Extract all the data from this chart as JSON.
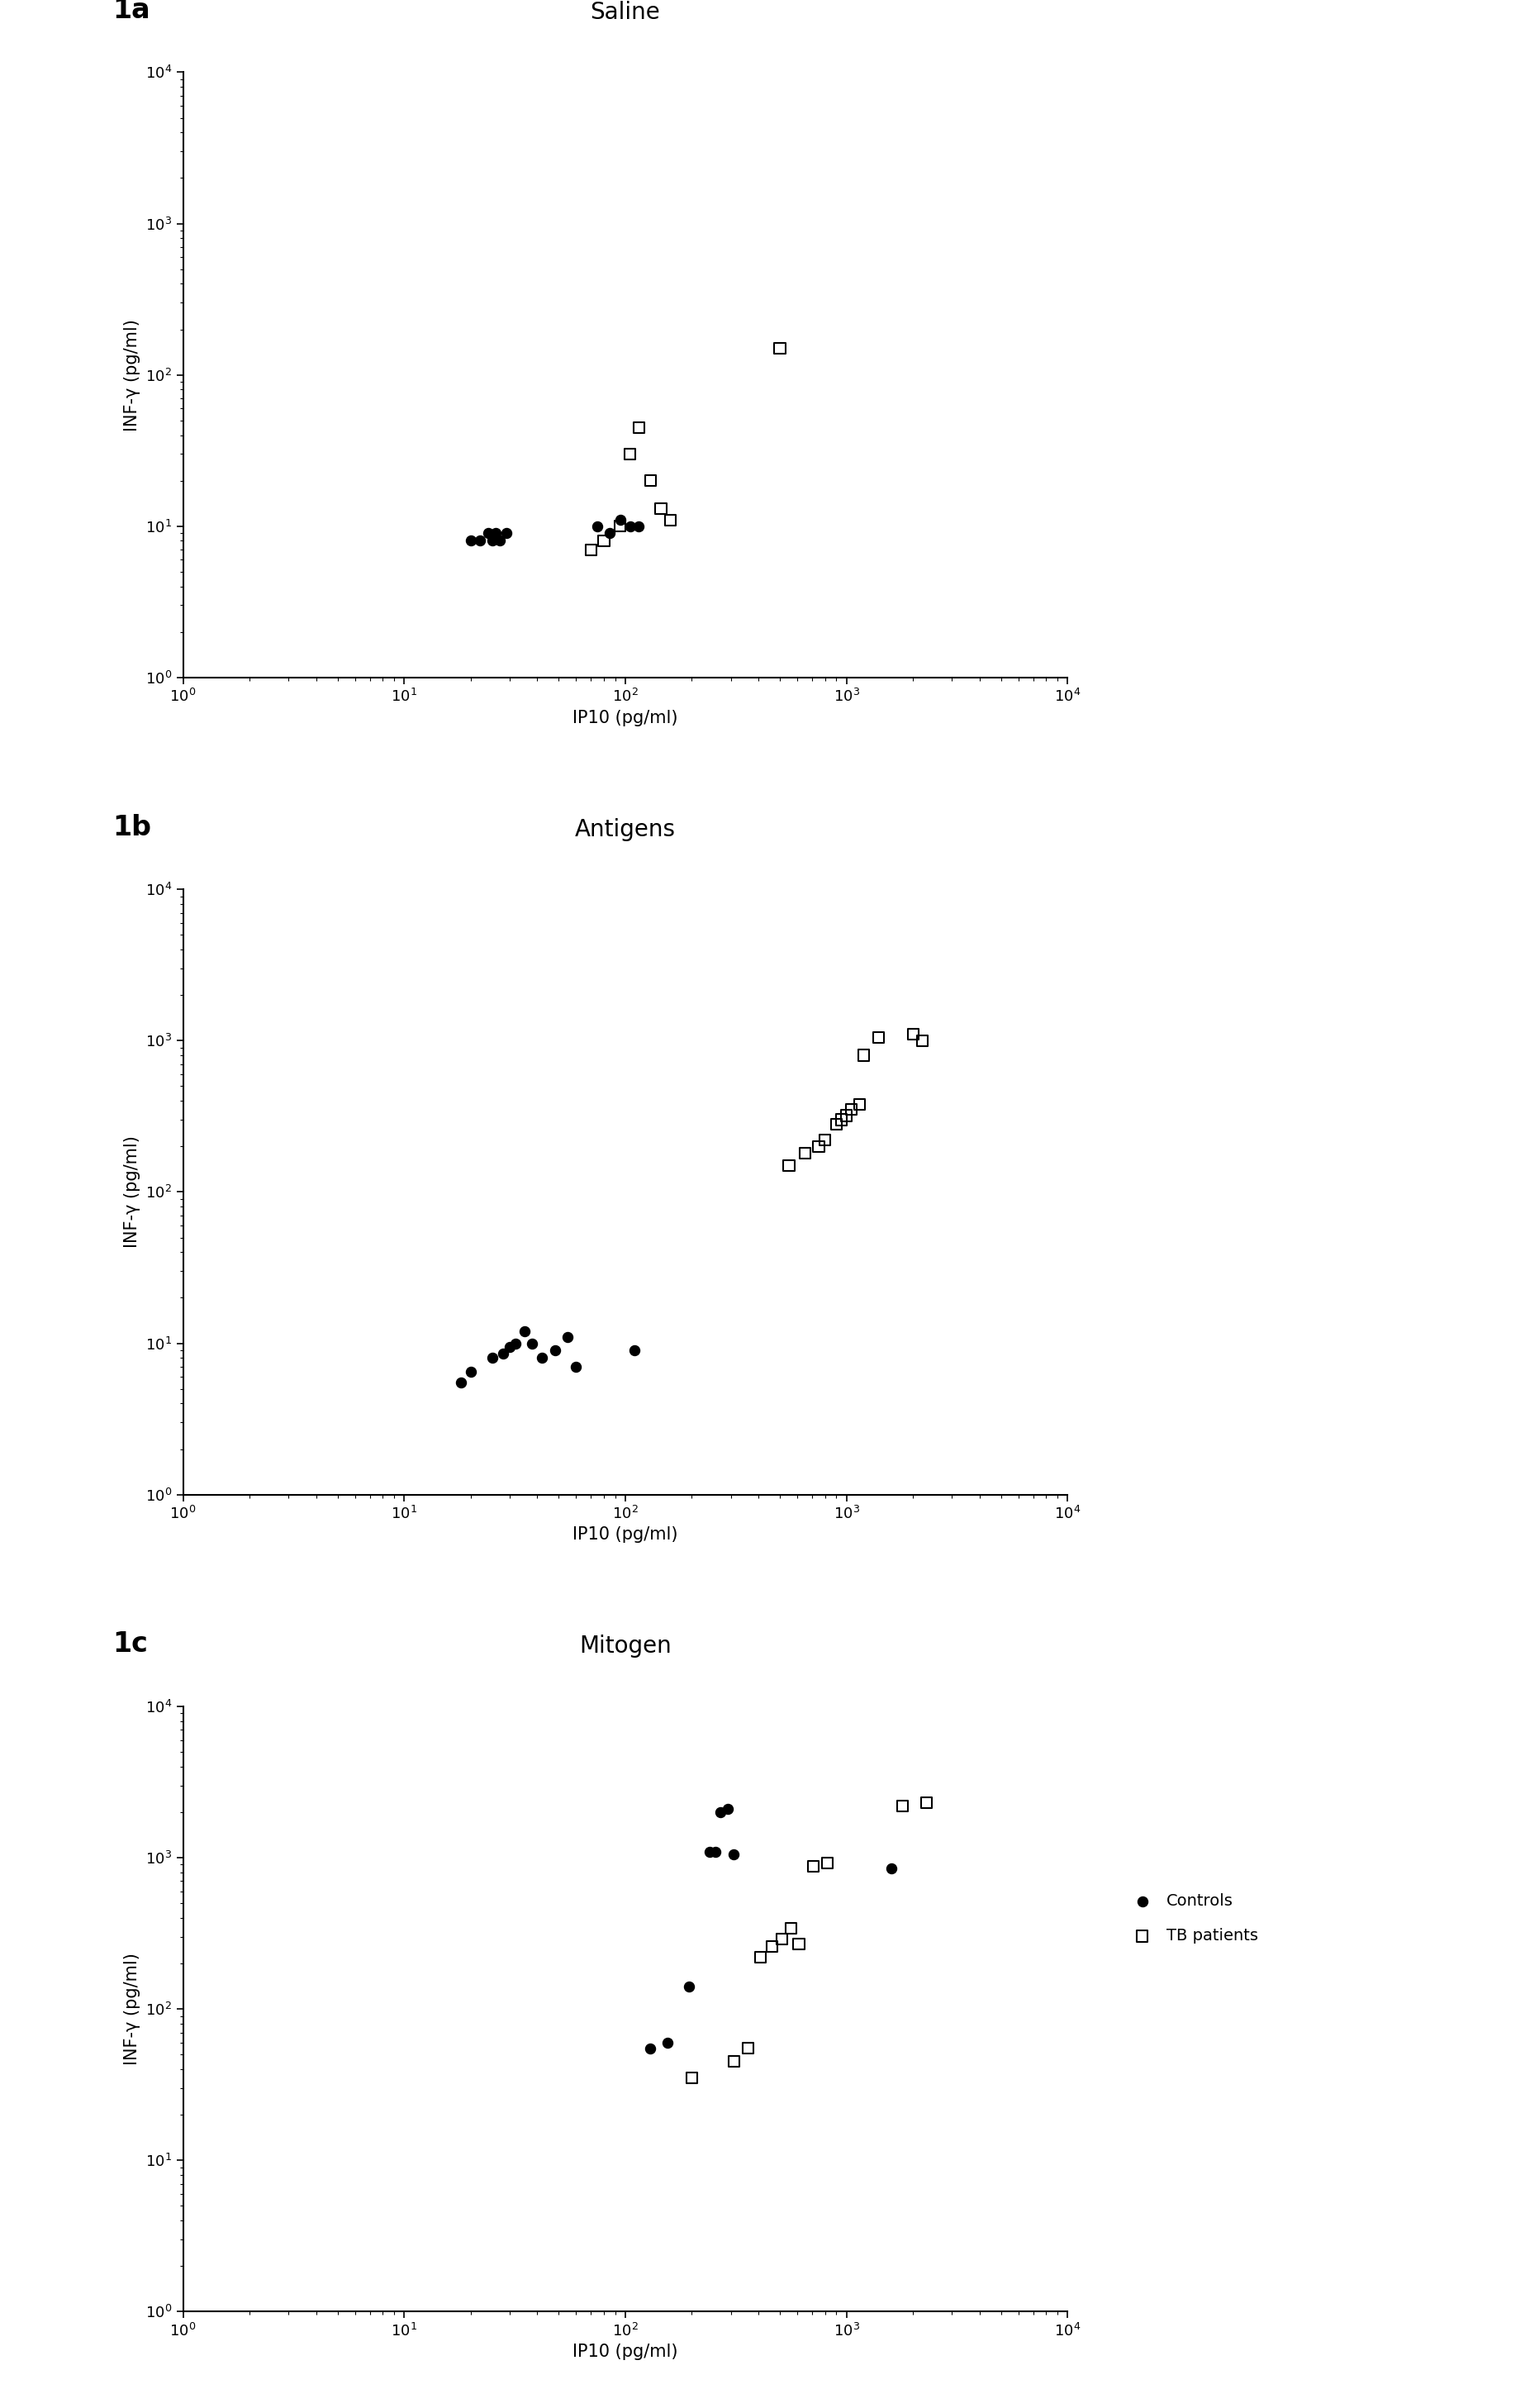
{
  "panels": [
    {
      "label": "1a",
      "title": "Saline",
      "controls_x": [
        20,
        22,
        24,
        25,
        26,
        27,
        29,
        75,
        85,
        95,
        105,
        115
      ],
      "controls_y": [
        8,
        8,
        9,
        8,
        9,
        8,
        9,
        10,
        9,
        11,
        10,
        10
      ],
      "tb_x": [
        70,
        80,
        95,
        105,
        115,
        130,
        145,
        160,
        500
      ],
      "tb_y": [
        7,
        8,
        10,
        30,
        45,
        20,
        13,
        11,
        150
      ]
    },
    {
      "label": "1b",
      "title": "Antigens",
      "controls_x": [
        18,
        20,
        25,
        28,
        30,
        32,
        35,
        38,
        42,
        48,
        55,
        60,
        110
      ],
      "controls_y": [
        5.5,
        6.5,
        8,
        8.5,
        9.5,
        10,
        12,
        10,
        8,
        9,
        11,
        7,
        9
      ],
      "tb_x": [
        550,
        650,
        750,
        800,
        900,
        950,
        1000,
        1050,
        1150,
        1200,
        1400,
        2000,
        2200
      ],
      "tb_y": [
        150,
        180,
        200,
        220,
        280,
        300,
        320,
        350,
        380,
        800,
        1050,
        1100,
        1000
      ]
    },
    {
      "label": "1c",
      "title": "Mitogen",
      "controls_x": [
        130,
        155,
        195,
        240,
        255,
        270,
        290,
        310,
        1600
      ],
      "controls_y": [
        55,
        60,
        140,
        1100,
        1100,
        2000,
        2100,
        1050,
        850
      ],
      "tb_x": [
        200,
        310,
        360,
        410,
        460,
        510,
        560,
        610,
        710,
        820,
        1800,
        2300
      ],
      "tb_y": [
        35,
        45,
        55,
        220,
        260,
        290,
        340,
        270,
        880,
        920,
        2200,
        2300
      ]
    }
  ],
  "xlabel": "IP10 (pg/ml)",
  "ylabel": "INF-γ (pg/ml)",
  "xlim": [
    1,
    10000
  ],
  "ylim": [
    1,
    10000
  ],
  "legend_controls": "Controls",
  "legend_tb": "TB patients",
  "marker_size": 90,
  "marker_size_c": 75,
  "background_color": "#ffffff",
  "panel_label_fontsize": 24,
  "title_fontsize": 20,
  "axis_label_fontsize": 15,
  "tick_label_fontsize": 13
}
